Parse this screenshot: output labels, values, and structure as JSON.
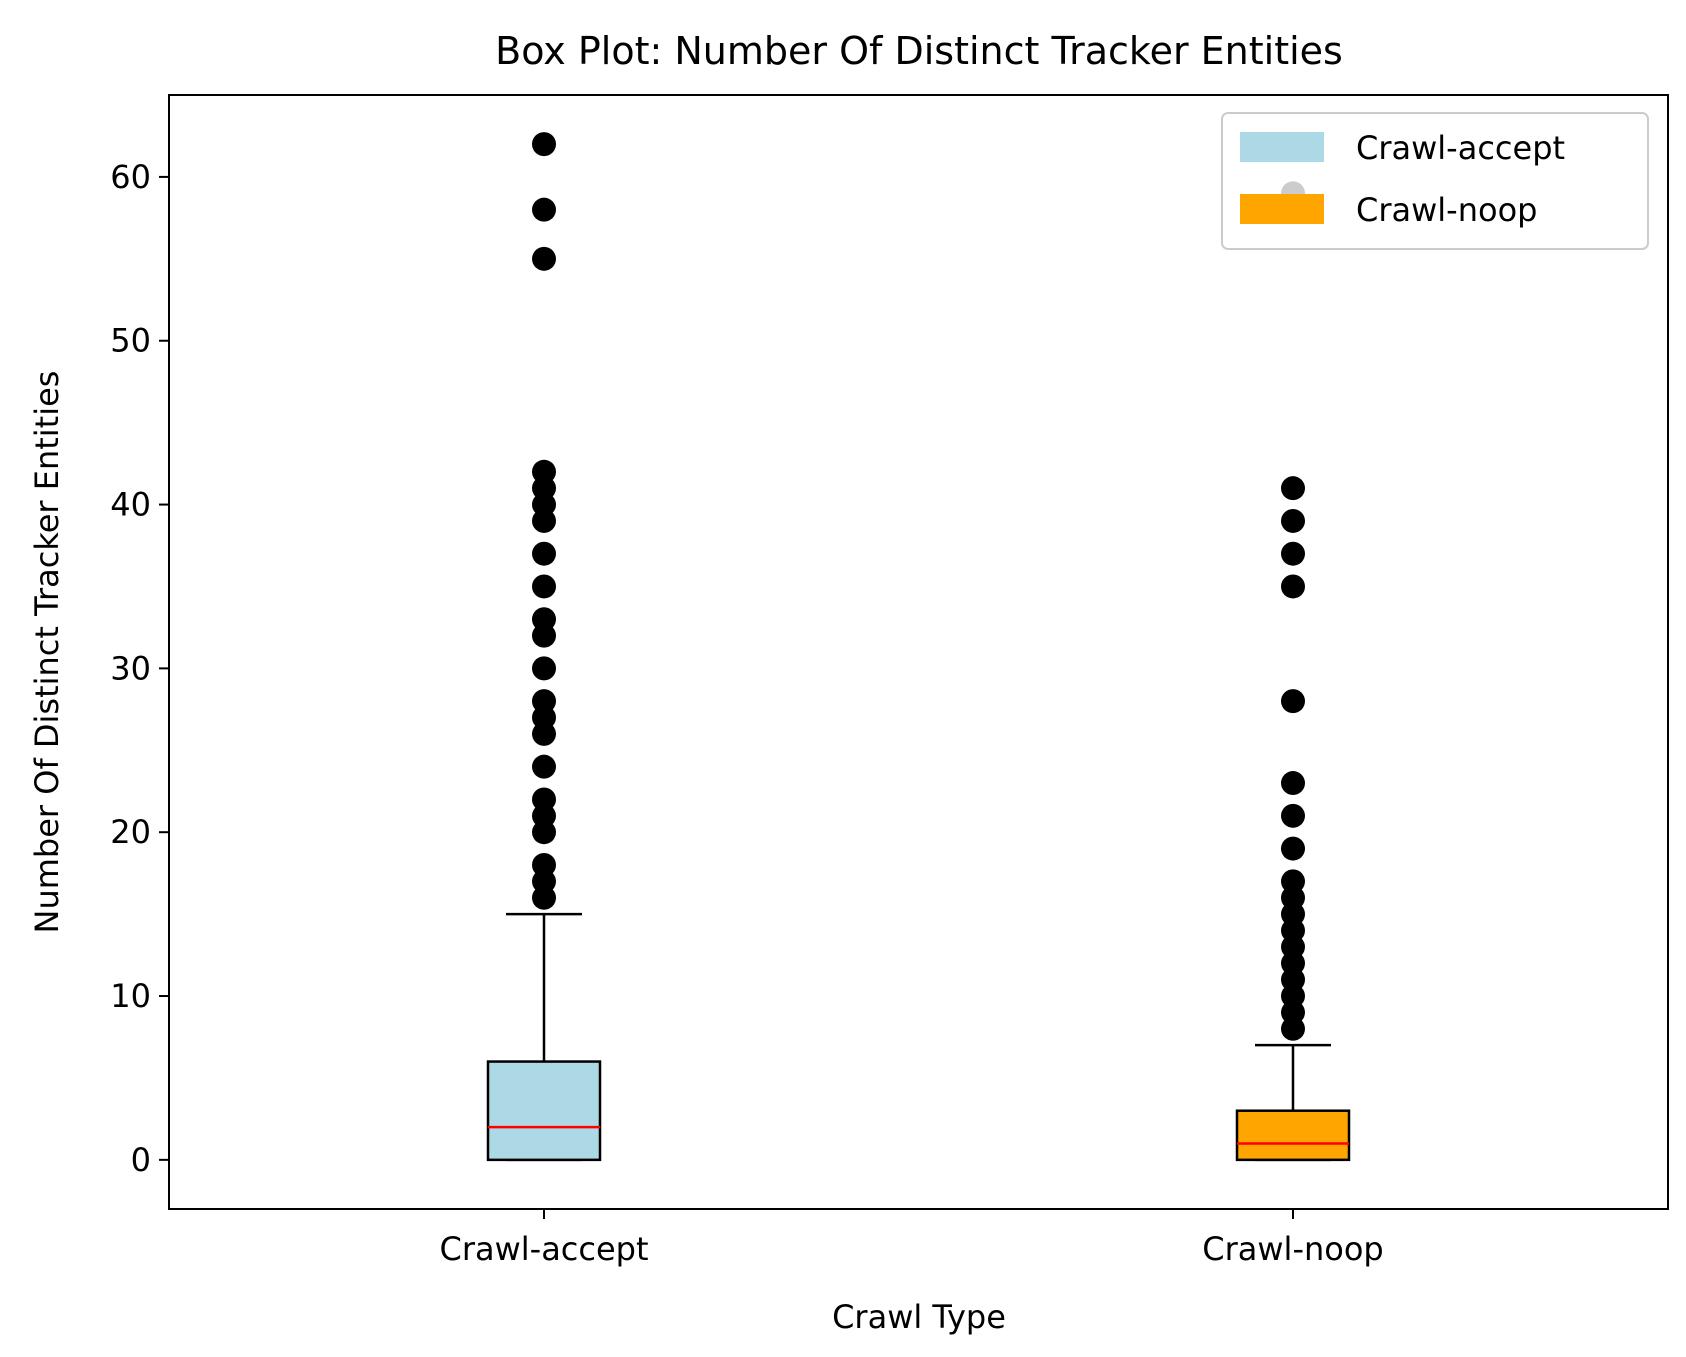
{
  "chart_data": {
    "type": "box",
    "title": "Box Plot: Number Of Distinct Tracker Entities",
    "xlabel": "Crawl Type",
    "ylabel": "Number Of Distinct Tracker Entities",
    "ylim": [
      -3,
      65
    ],
    "yticks": [
      0,
      10,
      20,
      30,
      40,
      50,
      60
    ],
    "categories": [
      "Crawl-accept",
      "Crawl-noop"
    ],
    "legend": {
      "placement": "top-right",
      "entries": [
        "Crawl-accept",
        "Crawl-noop"
      ]
    },
    "series": [
      {
        "name": "Crawl-accept",
        "color": "#add8e6",
        "median_color": "#ff0000",
        "q1": 0,
        "median": 2,
        "q3": 6,
        "whisker_low": 0,
        "whisker_high": 15,
        "outliers": [
          16,
          17,
          18,
          20,
          21,
          22,
          24,
          26,
          27,
          28,
          30,
          32,
          33,
          35,
          37,
          39,
          40,
          41,
          42,
          55,
          58,
          62
        ]
      },
      {
        "name": "Crawl-noop",
        "color": "#ffa500",
        "median_color": "#ff0000",
        "q1": 0,
        "median": 1,
        "q3": 3,
        "whisker_low": 0,
        "whisker_high": 7,
        "outliers": [
          8,
          9,
          10,
          11,
          12,
          13,
          14,
          15,
          16,
          17,
          19,
          21,
          23,
          28,
          35,
          37,
          39,
          41
        ]
      }
    ]
  }
}
